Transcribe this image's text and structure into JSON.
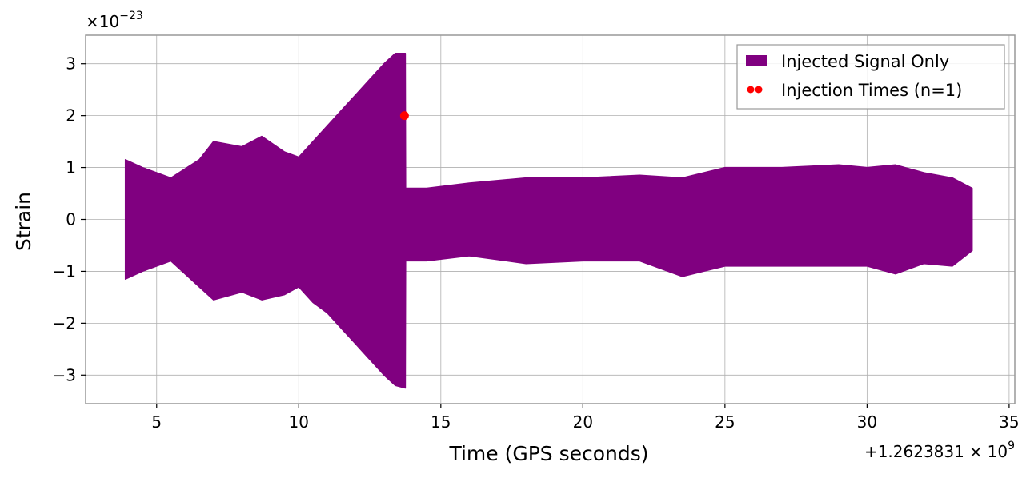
{
  "chart_data": {
    "type": "line",
    "xlabel": "Time (GPS seconds)",
    "ylabel": "Strain",
    "x_offset_label": "+1.2623831",
    "x_offset_times": "×",
    "x_offset_base": "10",
    "x_offset_exp": "9",
    "y_scale_times": "×",
    "y_scale_base": "10",
    "y_scale_exp": "−23",
    "xlim": [
      2.5,
      35.2
    ],
    "ylim": [
      -3.55,
      3.55
    ],
    "x_ticks": [
      5,
      10,
      15,
      20,
      25,
      30,
      35
    ],
    "x_tick_labels": [
      "5",
      "10",
      "15",
      "20",
      "25",
      "30",
      "35"
    ],
    "y_ticks": [
      -3,
      -2,
      -1,
      0,
      1,
      2,
      3
    ],
    "y_tick_labels": [
      "−3",
      "−2",
      "−1",
      "0",
      "1",
      "2",
      "3"
    ],
    "grid": true,
    "legend_position": "top-right",
    "series": [
      {
        "name": "Injected Signal Only",
        "kind": "band",
        "color": "#800080",
        "x": [
          3.9,
          4.5,
          5.5,
          6.5,
          7.0,
          8.0,
          8.7,
          9.5,
          10.0,
          10.5,
          11.0,
          11.5,
          12.0,
          12.5,
          13.0,
          13.4,
          13.75,
          13.76,
          14.5,
          16.0,
          18.0,
          20.0,
          22.0,
          23.5,
          25.0,
          27.0,
          29.0,
          30.0,
          31.0,
          32.0,
          33.0,
          33.7
        ],
        "upper": [
          1.15,
          1.0,
          0.8,
          1.15,
          1.5,
          1.4,
          1.6,
          1.3,
          1.2,
          1.5,
          1.8,
          2.1,
          2.4,
          2.7,
          3.0,
          3.2,
          3.2,
          0.6,
          0.6,
          0.7,
          0.8,
          0.8,
          0.85,
          0.8,
          1.0,
          1.0,
          1.05,
          1.0,
          1.05,
          0.9,
          0.8,
          0.6
        ],
        "lower": [
          -1.15,
          -1.0,
          -0.8,
          -1.3,
          -1.55,
          -1.4,
          -1.55,
          -1.45,
          -1.3,
          -1.6,
          -1.8,
          -2.1,
          -2.4,
          -2.7,
          -3.0,
          -3.2,
          -3.25,
          -0.8,
          -0.8,
          -0.7,
          -0.85,
          -0.8,
          -0.8,
          -1.1,
          -0.9,
          -0.9,
          -0.9,
          -0.9,
          -1.05,
          -0.85,
          -0.9,
          -0.6
        ]
      },
      {
        "name": "Injection Times (n=1)",
        "kind": "scatter",
        "color": "#ff0000",
        "x": [
          13.72
        ],
        "y": [
          2.0
        ]
      }
    ]
  }
}
